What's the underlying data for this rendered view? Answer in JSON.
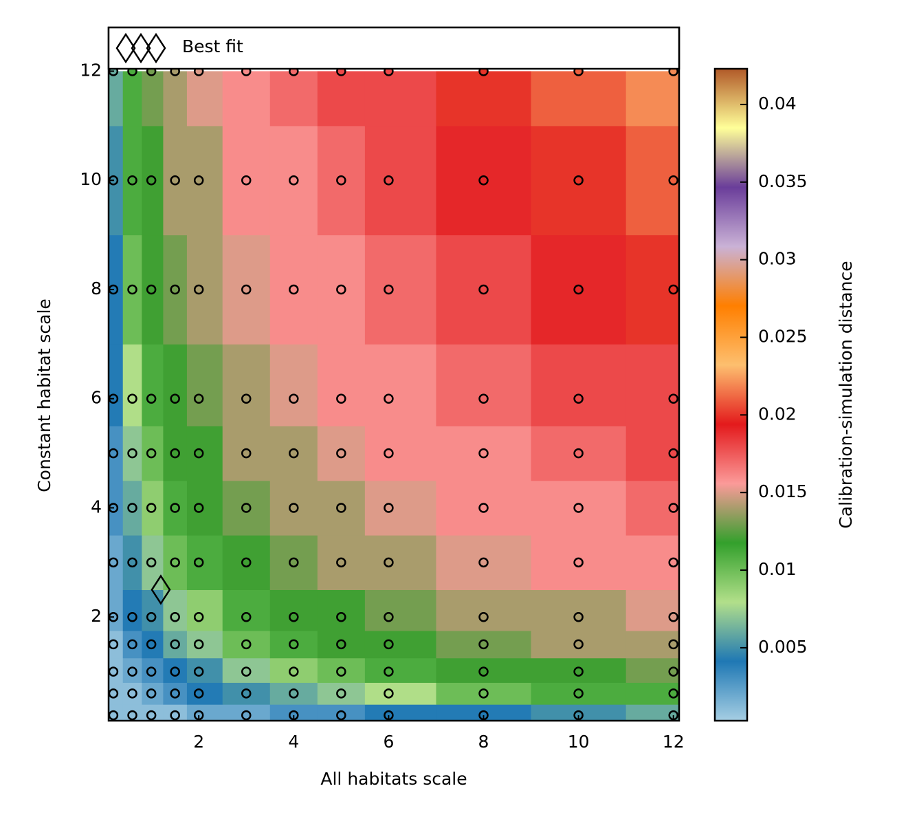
{
  "chart_data": {
    "type": "heatmap-scatter",
    "x_label": "All habitats scale",
    "y_label": "Constant habitat scale",
    "colorbar_label": "Calibration-simulation distance",
    "legend_label": "Best fit",
    "xlim": [
      0.1,
      12.12
    ],
    "ylim": [
      0.1,
      12.8
    ],
    "xticks": [
      2,
      4,
      6,
      8,
      10,
      12
    ],
    "yticks": [
      2,
      4,
      6,
      8,
      10,
      12
    ],
    "zlim": [
      0.0003,
      0.0423
    ],
    "zticks": [
      0.005,
      0.01,
      0.015,
      0.02,
      0.025,
      0.03,
      0.035,
      0.04
    ],
    "colormap": [
      "#a6cee3",
      "#1f78b4",
      "#b2df8a",
      "#33a02c",
      "#fb9a99",
      "#e31a1c",
      "#fdbf6f",
      "#ff7f00",
      "#cab2d6",
      "#6a3d9a",
      "#ffff99",
      "#b15928"
    ],
    "x": [
      0.2,
      0.6,
      1,
      1.5,
      2,
      3,
      4,
      5,
      6,
      8,
      10,
      12
    ],
    "y": [
      0.2,
      0.6,
      1,
      1.5,
      2,
      3,
      4,
      5,
      6,
      8,
      10,
      12
    ],
    "values": [
      [
        0.001,
        0.001,
        0.001,
        0.001,
        0.002,
        0.002,
        0.003,
        0.003,
        0.004,
        0.004,
        0.005,
        0.006
      ],
      [
        0.001,
        0.001,
        0.002,
        0.003,
        0.004,
        0.005,
        0.006,
        0.007,
        0.008,
        0.01,
        0.011,
        0.011
      ],
      [
        0.001,
        0.002,
        0.003,
        0.004,
        0.005,
        0.007,
        0.009,
        0.01,
        0.011,
        0.012,
        0.012,
        0.013
      ],
      [
        0.001,
        0.003,
        0.004,
        0.006,
        0.007,
        0.01,
        0.011,
        0.012,
        0.012,
        0.013,
        0.014,
        0.014
      ],
      [
        0.002,
        0.004,
        0.005,
        0.007,
        0.009,
        0.011,
        0.012,
        0.012,
        0.013,
        0.014,
        0.014,
        0.015
      ],
      [
        0.002,
        0.005,
        0.007,
        0.01,
        0.011,
        0.012,
        0.013,
        0.014,
        0.014,
        0.015,
        0.016,
        0.016
      ],
      [
        0.003,
        0.006,
        0.009,
        0.011,
        0.012,
        0.013,
        0.014,
        0.014,
        0.015,
        0.016,
        0.016,
        0.017
      ],
      [
        0.003,
        0.007,
        0.01,
        0.012,
        0.012,
        0.014,
        0.014,
        0.015,
        0.016,
        0.016,
        0.017,
        0.018
      ],
      [
        0.004,
        0.008,
        0.011,
        0.012,
        0.013,
        0.014,
        0.015,
        0.016,
        0.016,
        0.017,
        0.018,
        0.018
      ],
      [
        0.004,
        0.01,
        0.012,
        0.013,
        0.014,
        0.015,
        0.016,
        0.016,
        0.017,
        0.018,
        0.019,
        0.02
      ],
      [
        0.005,
        0.011,
        0.012,
        0.014,
        0.014,
        0.016,
        0.016,
        0.017,
        0.018,
        0.019,
        0.02,
        0.021
      ],
      [
        0.006,
        0.011,
        0.013,
        0.014,
        0.015,
        0.016,
        0.017,
        0.018,
        0.018,
        0.02,
        0.021,
        0.022
      ]
    ],
    "best_fit": {
      "x": 1.2,
      "y": 2.5
    }
  }
}
